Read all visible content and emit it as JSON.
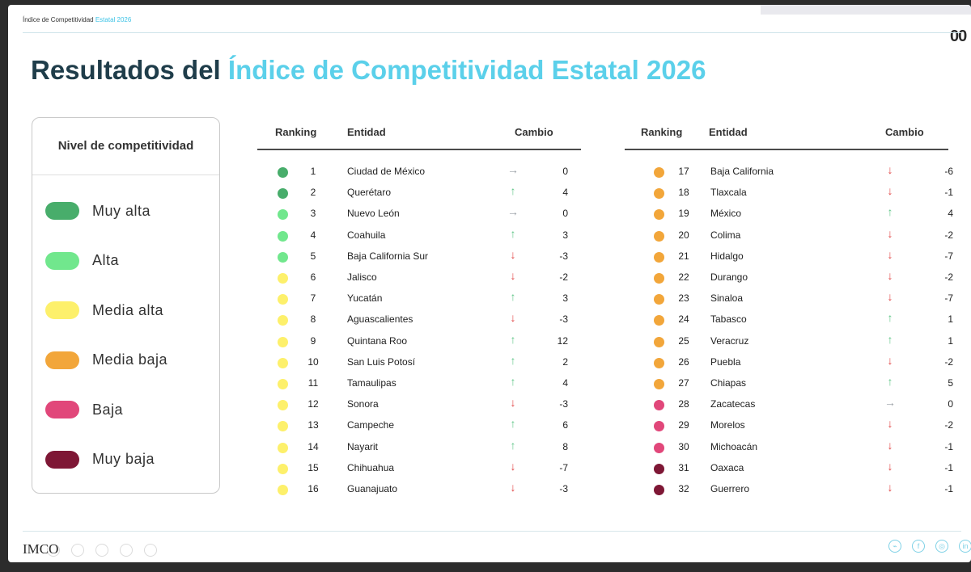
{
  "colors": {
    "Muy alta": "#48ad6b",
    "Alta": "#71e78d",
    "Media alta": "#fdf06b",
    "Media baja": "#f2a63a",
    "Baja": "#e1477a",
    "Muy baja": "#7e1735",
    "arrow_up": "#63c78a",
    "arrow_down": "#e24b4b",
    "arrow_flat": "#9aa0a6"
  },
  "header": {
    "breadcrumb_main": "Índice de Competitividad",
    "breadcrumb_accent": "Estatal 2026",
    "title_main": "Resultados del",
    "title_accent": "Índice de Competitividad Estatal 2026",
    "corner": "00"
  },
  "legend": {
    "title": "Nivel de competitividad",
    "items": [
      {
        "label": "Muy alta",
        "color": "#48ad6b"
      },
      {
        "label": "Alta",
        "color": "#71e78d"
      },
      {
        "label": "Media alta",
        "color": "#fdf06b"
      },
      {
        "label": "Media baja",
        "color": "#f2a63a"
      },
      {
        "label": "Baja",
        "color": "#e1477a"
      },
      {
        "label": "Muy baja",
        "color": "#7e1735"
      }
    ]
  },
  "table": {
    "headers": {
      "ranking": "Ranking",
      "entidad": "Entidad",
      "cambio": "Cambio"
    },
    "left_rows": [
      {
        "rank": "1",
        "entity": "Ciudad de México",
        "level": "Muy alta",
        "dir": "flat",
        "change": "0"
      },
      {
        "rank": "2",
        "entity": "Querétaro",
        "level": "Muy alta",
        "dir": "up",
        "change": "4"
      },
      {
        "rank": "3",
        "entity": "Nuevo León",
        "level": "Alta",
        "dir": "flat",
        "change": "0"
      },
      {
        "rank": "4",
        "entity": "Coahuila",
        "level": "Alta",
        "dir": "up",
        "change": "3"
      },
      {
        "rank": "5",
        "entity": "Baja California Sur",
        "level": "Alta",
        "dir": "down",
        "change": "-3"
      },
      {
        "rank": "6",
        "entity": "Jalisco",
        "level": "Media alta",
        "dir": "down",
        "change": "-2"
      },
      {
        "rank": "7",
        "entity": "Yucatán",
        "level": "Media alta",
        "dir": "up",
        "change": "3"
      },
      {
        "rank": "8",
        "entity": "Aguascalientes",
        "level": "Media alta",
        "dir": "down",
        "change": "-3"
      },
      {
        "rank": "9",
        "entity": "Quintana Roo",
        "level": "Media alta",
        "dir": "up",
        "change": "12"
      },
      {
        "rank": "10",
        "entity": "San Luis Potosí",
        "level": "Media alta",
        "dir": "up",
        "change": "2"
      },
      {
        "rank": "11",
        "entity": "Tamaulipas",
        "level": "Media alta",
        "dir": "up",
        "change": "4"
      },
      {
        "rank": "12",
        "entity": "Sonora",
        "level": "Media alta",
        "dir": "down",
        "change": "-3"
      },
      {
        "rank": "13",
        "entity": "Campeche",
        "level": "Media alta",
        "dir": "up",
        "change": "6"
      },
      {
        "rank": "14",
        "entity": "Nayarit",
        "level": "Media alta",
        "dir": "up",
        "change": "8"
      },
      {
        "rank": "15",
        "entity": "Chihuahua",
        "level": "Media alta",
        "dir": "down",
        "change": "-7"
      },
      {
        "rank": "16",
        "entity": "Guanajuato",
        "level": "Media alta",
        "dir": "down",
        "change": "-3"
      }
    ],
    "right_rows": [
      {
        "rank": "17",
        "entity": "Baja California",
        "level": "Media baja",
        "dir": "down",
        "change": "-6"
      },
      {
        "rank": "18",
        "entity": "Tlaxcala",
        "level": "Media baja",
        "dir": "down",
        "change": "-1"
      },
      {
        "rank": "19",
        "entity": "México",
        "level": "Media baja",
        "dir": "up",
        "change": "4"
      },
      {
        "rank": "20",
        "entity": "Colima",
        "level": "Media baja",
        "dir": "down",
        "change": "-2"
      },
      {
        "rank": "21",
        "entity": "Hidalgo",
        "level": "Media baja",
        "dir": "down",
        "change": "-7"
      },
      {
        "rank": "22",
        "entity": "Durango",
        "level": "Media baja",
        "dir": "down",
        "change": "-2"
      },
      {
        "rank": "23",
        "entity": "Sinaloa",
        "level": "Media baja",
        "dir": "down",
        "change": "-7"
      },
      {
        "rank": "24",
        "entity": "Tabasco",
        "level": "Media baja",
        "dir": "up",
        "change": "1"
      },
      {
        "rank": "25",
        "entity": "Veracruz",
        "level": "Media baja",
        "dir": "up",
        "change": "1"
      },
      {
        "rank": "26",
        "entity": "Puebla",
        "level": "Media baja",
        "dir": "down",
        "change": "-2"
      },
      {
        "rank": "27",
        "entity": "Chiapas",
        "level": "Media baja",
        "dir": "up",
        "change": "5"
      },
      {
        "rank": "28",
        "entity": "Zacatecas",
        "level": "Baja",
        "dir": "flat",
        "change": "0"
      },
      {
        "rank": "29",
        "entity": "Morelos",
        "level": "Baja",
        "dir": "down",
        "change": "-2"
      },
      {
        "rank": "30",
        "entity": "Michoacán",
        "level": "Baja",
        "dir": "down",
        "change": "-1"
      },
      {
        "rank": "31",
        "entity": "Oaxaca",
        "level": "Muy baja",
        "dir": "down",
        "change": "-1"
      },
      {
        "rank": "32",
        "entity": "Guerrero",
        "level": "Muy baja",
        "dir": "down",
        "change": "-1"
      }
    ]
  },
  "footer": {
    "logo": "IMCO",
    "social_icons": [
      "web-icon",
      "facebook-icon",
      "instagram-icon",
      "linkedin-icon"
    ]
  }
}
